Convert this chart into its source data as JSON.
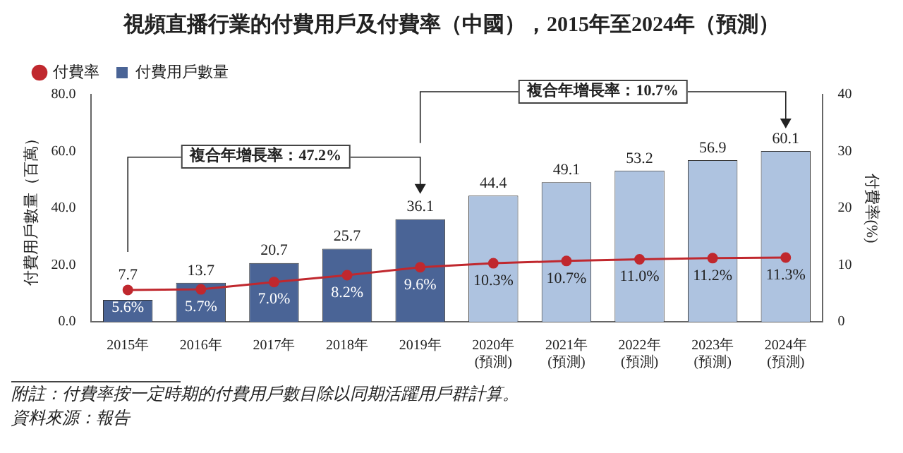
{
  "chart_data": {
    "type": "bar",
    "title": "視頻直播行業的付費用戶及付費率（中國），2015年至2024年（預測）",
    "categories": [
      "2015年",
      "2016年",
      "2017年",
      "2018年",
      "2019年",
      "2020年\n(預測)",
      "2021年\n(預測)",
      "2022年\n(預測)",
      "2023年\n(預測)",
      "2024年\n(預測)"
    ],
    "series": [
      {
        "name": "付費率",
        "type": "line",
        "axis": "y2",
        "color": "#c0282e",
        "values": [
          5.6,
          5.7,
          7.0,
          8.2,
          9.6,
          10.3,
          10.7,
          11.0,
          11.2,
          11.3
        ],
        "value_labels": [
          "5.6%",
          "5.7%",
          "7.0%",
          "8.2%",
          "9.6%",
          "10.3%",
          "10.7%",
          "11.0%",
          "11.2%",
          "11.3%"
        ]
      },
      {
        "name": "付費用戶數量",
        "color": "#4a6496",
        "colors": [
          "#4a6496",
          "#4a6496",
          "#4a6496",
          "#4a6496",
          "#4a6496",
          "#aec3e0",
          "#aec3e0",
          "#aec3e0",
          "#aec3e0",
          "#aec3e0"
        ],
        "values": [
          7.7,
          13.7,
          20.7,
          25.7,
          36.1,
          44.4,
          49.1,
          53.2,
          56.9,
          60.1
        ]
      }
    ],
    "ylabel": "付費用戶數量（百萬）",
    "y2label": "付費率(%)",
    "ylim": [
      0,
      80
    ],
    "yticks": [
      {
        "value": 0,
        "label": "0.0"
      },
      {
        "value": 20,
        "label": "20.0"
      },
      {
        "value": 40,
        "label": "40.0"
      },
      {
        "value": 60,
        "label": "60.0"
      },
      {
        "value": 80,
        "label": "80.0"
      }
    ],
    "y2lim": [
      0,
      40
    ],
    "y2ticks": [
      0,
      10,
      20,
      30,
      40
    ],
    "legend": "top left",
    "marker": "circle",
    "data_labels": true,
    "annotations": [
      "複合年增長率：47.2%",
      "複合年增長率：10.7%",
      "附註：付費率按一定時期的付費用戶數目除以同期活躍用戶群計算。",
      "資料來源：報告"
    ]
  }
}
